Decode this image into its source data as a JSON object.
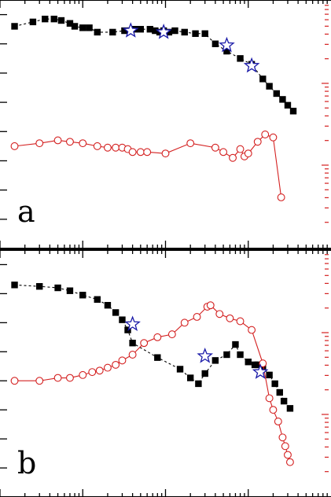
{
  "chart_data": [
    {
      "type": "scatter",
      "panel_label": "a",
      "xscale": "log",
      "xlim": [
        0.1,
        1000
      ],
      "ylim": [
        0,
        8.5
      ],
      "y2scale": "log",
      "grid": false,
      "series": [
        {
          "marker": "filled-square",
          "line": "dashed",
          "color": "#000000",
          "x": [
            0.15,
            0.25,
            0.35,
            0.45,
            0.55,
            0.7,
            0.8,
            1.0,
            1.2,
            1.5,
            2.3,
            3.2,
            3.8,
            4.2,
            5.0,
            6.5,
            7.5,
            8.5,
            9.5,
            11.0,
            13.0,
            17.0,
            23.0,
            30.0,
            40.0,
            55.0,
            80.0,
            110.0,
            150.0,
            180.0,
            220.0,
            260.0,
            300.0,
            350.0
          ],
          "y": [
            7.6,
            7.75,
            7.85,
            7.85,
            7.8,
            7.7,
            7.6,
            7.55,
            7.55,
            7.4,
            7.4,
            7.45,
            7.45,
            7.5,
            7.5,
            7.5,
            7.45,
            7.4,
            7.45,
            7.4,
            7.45,
            7.4,
            7.35,
            7.35,
            7.0,
            6.75,
            6.5,
            6.3,
            5.8,
            5.55,
            5.3,
            5.1,
            4.9,
            4.7
          ]
        },
        {
          "marker": "open-circle",
          "line": "solid",
          "color": "#d42020",
          "x": [
            0.15,
            0.3,
            0.5,
            0.7,
            1.0,
            1.5,
            2.0,
            2.5,
            3.0,
            3.5,
            4.0,
            5.0,
            6.0,
            10.0,
            20.0,
            40.0,
            50.0,
            65.0,
            80.0,
            90.0,
            100.0,
            130.0,
            160.0,
            200.0,
            250.0
          ],
          "y": [
            3.5,
            3.6,
            3.7,
            3.65,
            3.6,
            3.5,
            3.45,
            3.45,
            3.45,
            3.4,
            3.3,
            3.3,
            3.3,
            3.25,
            3.6,
            3.45,
            3.3,
            3.1,
            3.4,
            3.15,
            3.25,
            3.65,
            3.9,
            3.8,
            1.75
          ]
        },
        {
          "marker": "open-star",
          "line": "none",
          "color": "#1a1aa8",
          "x": [
            3.8,
            9.5,
            55.0,
            110.0
          ],
          "y": [
            7.45,
            7.4,
            6.95,
            6.25
          ]
        }
      ]
    },
    {
      "type": "scatter",
      "panel_label": "b",
      "xscale": "log",
      "xlim": [
        0.1,
        1000
      ],
      "ylim": [
        0,
        8.5
      ],
      "y2scale": "log",
      "grid": false,
      "series": [
        {
          "marker": "filled-square",
          "line": "dashed",
          "color": "#000000",
          "x": [
            0.15,
            0.3,
            0.5,
            0.7,
            1.0,
            1.5,
            2.0,
            2.5,
            3.0,
            3.5,
            4.0,
            8.0,
            15.0,
            20.0,
            25.0,
            30.0,
            40.0,
            55.0,
            70.0,
            80.0,
            100.0,
            120.0,
            130.0,
            150.0,
            180.0,
            210.0,
            240.0,
            270.0,
            320.0
          ],
          "y": [
            7.3,
            7.25,
            7.2,
            7.1,
            6.95,
            6.8,
            6.6,
            6.35,
            6.1,
            5.75,
            5.3,
            4.8,
            4.4,
            4.1,
            3.9,
            4.25,
            4.7,
            4.9,
            5.25,
            4.9,
            4.65,
            4.55,
            4.55,
            4.45,
            4.2,
            3.9,
            3.6,
            3.3,
            3.05
          ]
        },
        {
          "marker": "open-circle",
          "line": "solid",
          "color": "#d42020",
          "x": [
            0.15,
            0.3,
            0.5,
            0.7,
            1.0,
            1.3,
            1.6,
            2.0,
            2.5,
            3.0,
            4.0,
            5.5,
            8.0,
            12.0,
            17.0,
            24.0,
            32.0,
            35.0,
            45.0,
            60.0,
            80.0,
            110.0,
            150.0,
            180.0,
            200.0,
            230.0,
            260.0,
            280.0,
            300.0,
            320.0
          ],
          "y": [
            4.0,
            4.0,
            4.1,
            4.1,
            4.2,
            4.3,
            4.35,
            4.45,
            4.55,
            4.7,
            4.9,
            5.3,
            5.5,
            5.6,
            6.0,
            6.2,
            6.55,
            6.6,
            6.3,
            6.15,
            6.05,
            5.75,
            4.6,
            3.4,
            3.0,
            2.6,
            2.05,
            1.75,
            1.45,
            1.2
          ]
        },
        {
          "marker": "open-star",
          "line": "none",
          "color": "#1a1aa8",
          "x": [
            4.0,
            30.0,
            140.0
          ],
          "y": [
            5.95,
            4.85,
            4.3
          ]
        }
      ]
    }
  ]
}
